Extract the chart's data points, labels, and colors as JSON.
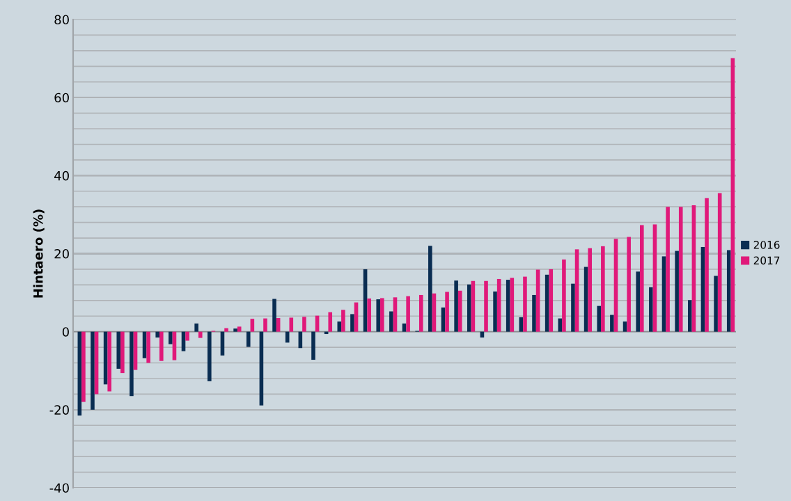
{
  "chart_data": {
    "type": "bar",
    "ylabel": "Hintaero (%)",
    "categories": [
      null,
      null,
      null,
      null,
      null,
      null,
      null,
      null,
      null,
      null,
      null,
      null,
      null,
      null,
      null,
      null,
      null,
      null,
      null,
      null,
      null,
      null,
      null,
      null,
      null,
      null,
      null,
      null,
      null,
      null,
      null,
      null,
      null,
      null,
      null,
      null,
      null,
      null,
      null,
      null,
      null,
      null,
      null,
      null,
      null,
      null,
      null,
      null,
      null,
      null,
      null
    ],
    "series": [
      {
        "name": "2016",
        "color": "#0a2d52",
        "values": [
          -21.5,
          -20,
          -13.5,
          -9.5,
          -16.5,
          -6.8,
          -1.5,
          -3.2,
          -5,
          2.1,
          -12.7,
          -6.1,
          0.8,
          -3.9,
          -18.9,
          8.4,
          -2.8,
          -4.2,
          -7.2,
          -0.6,
          2.6,
          4.5,
          16,
          8.3,
          5.2,
          2.1,
          0.2,
          22,
          6.2,
          13.1,
          12.1,
          -1.5,
          10.3,
          13.3,
          3.7,
          9.4,
          14.6,
          3.4,
          12.3,
          16.6,
          6.6,
          4.3,
          2.6,
          15.4,
          11.4,
          19.3,
          20.7,
          8.1,
          21.7,
          14.3,
          20.9
        ]
      },
      {
        "name": "2017",
        "color": "#e0197a",
        "values": [
          -18,
          -16,
          -15.3,
          -10.6,
          -9.8,
          -8,
          -7.5,
          -7.3,
          -2.3,
          -1.6,
          0.2,
          0.9,
          1.3,
          3.3,
          3.4,
          3.5,
          3.6,
          3.8,
          4.1,
          5,
          5.6,
          7.5,
          8.5,
          8.6,
          8.8,
          9.1,
          9.4,
          9.8,
          10.2,
          10.5,
          13,
          13,
          13.5,
          13.8,
          14.1,
          15.9,
          16,
          18.5,
          21.1,
          21.4,
          21.9,
          23.8,
          24.3,
          27.3,
          27.5,
          32,
          32,
          32.4,
          34.2,
          35.5,
          70.1
        ]
      }
    ],
    "ylim": [
      -40,
      80
    ],
    "yticks": [
      -40,
      {
        "value": -36,
        "label": null
      },
      {
        "value": -32,
        "label": null
      },
      {
        "value": -28,
        "label": null
      },
      {
        "value": -24,
        "label": null
      },
      -20,
      {
        "value": -16,
        "label": null
      },
      {
        "value": -12,
        "label": null
      },
      {
        "value": -8,
        "label": null
      },
      {
        "value": -4,
        "label": null
      },
      0,
      {
        "value": 4,
        "label": null
      },
      {
        "value": 8,
        "label": null
      },
      {
        "value": 12,
        "label": null
      },
      {
        "value": 16,
        "label": null
      },
      20,
      {
        "value": 24,
        "label": null
      },
      {
        "value": 28,
        "label": null
      },
      {
        "value": 32,
        "label": null
      },
      {
        "value": 36,
        "label": null
      },
      40,
      {
        "value": 44,
        "label": null
      },
      {
        "value": 48,
        "label": null
      },
      {
        "value": 52,
        "label": null
      },
      {
        "value": 56,
        "label": null
      },
      60,
      {
        "value": 64,
        "label": null
      },
      {
        "value": 68,
        "label": null
      },
      {
        "value": 72,
        "label": null
      },
      {
        "value": 76,
        "label": null
      },
      80
    ],
    "grid": "y",
    "legend": "right",
    "tick_labels": "y"
  }
}
